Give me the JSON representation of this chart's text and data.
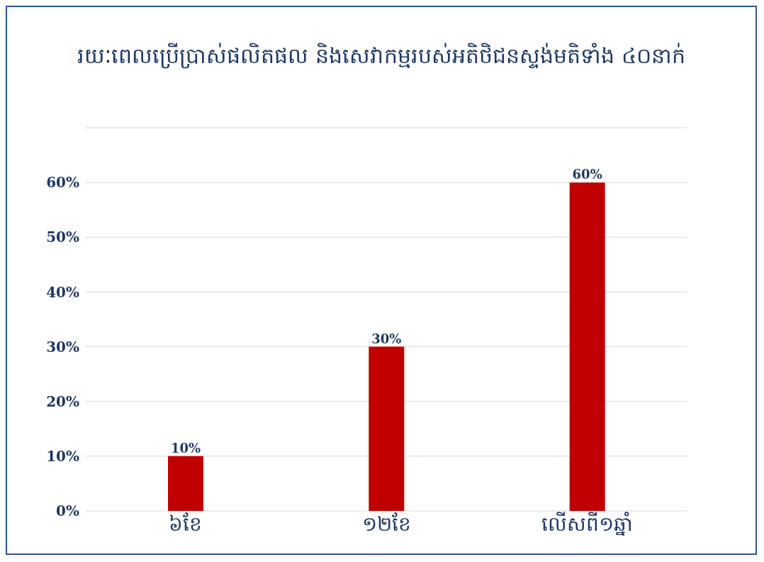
{
  "chart_data": {
    "type": "bar",
    "title": "រយៈពេលប្រើប្រាស់ផលិតផល និងសេវាកម្មរបស់អតិថិជនស្ទង់មតិទាំង ៤០នាក់",
    "categories": [
      "៦ខែ",
      "១២ខែ",
      "លើសពី១ឆ្នាំ"
    ],
    "values": [
      10,
      30,
      60
    ],
    "color": "#c00000",
    "value_labels": [
      "10%",
      "30%",
      "60%"
    ],
    "ylim": [
      0,
      70
    ],
    "yticks": [
      {
        "value": 0,
        "label": "0%"
      },
      {
        "value": 10,
        "label": "10%"
      },
      {
        "value": 20,
        "label": "20%"
      },
      {
        "value": 30,
        "label": "30%"
      },
      {
        "value": 40,
        "label": "40%"
      },
      {
        "value": 50,
        "label": "50%"
      },
      {
        "value": 60,
        "label": "60%"
      },
      {
        "value": 70,
        "label": null
      }
    ],
    "grid": "y"
  }
}
